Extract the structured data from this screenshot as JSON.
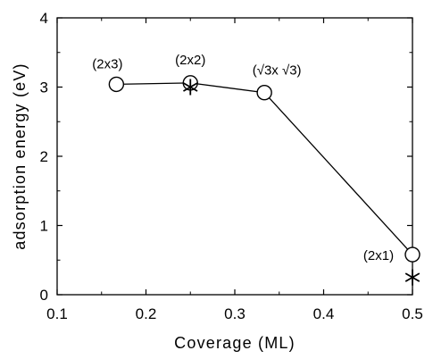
{
  "chart_data": {
    "type": "line",
    "xlabel": "Coverage (ML)",
    "ylabel": "adsorption energy (eV)",
    "xlim": [
      0.1,
      0.5
    ],
    "ylim": [
      0,
      4
    ],
    "x_ticks": [
      0.1,
      0.2,
      0.3,
      0.4,
      0.5
    ],
    "y_ticks": [
      0,
      1,
      2,
      3,
      4
    ],
    "x_tick_labels": [
      "0.1",
      "0.2",
      "0.3",
      "0.4",
      "0.5"
    ],
    "y_tick_labels": [
      "0",
      "1",
      "2",
      "3",
      "4"
    ],
    "grid": false,
    "series": [
      {
        "marker": "circle",
        "line": true,
        "x": [
          0.1667,
          0.25,
          0.3333,
          0.5
        ],
        "y": [
          3.04,
          3.06,
          2.92,
          0.58
        ]
      },
      {
        "marker": "asterisk",
        "line": false,
        "x": [
          0.25,
          0.5
        ],
        "y": [
          3.0,
          0.25
        ]
      }
    ],
    "annotations": [
      {
        "text": "(2x3)",
        "x": 0.1667,
        "y": 3.04
      },
      {
        "text": "(2x2)",
        "x": 0.25,
        "y": 3.06
      },
      {
        "text": "(√3x √3)",
        "x": 0.3333,
        "y": 2.92
      },
      {
        "text": "(2x1)",
        "x": 0.5,
        "y": 0.58
      }
    ]
  }
}
